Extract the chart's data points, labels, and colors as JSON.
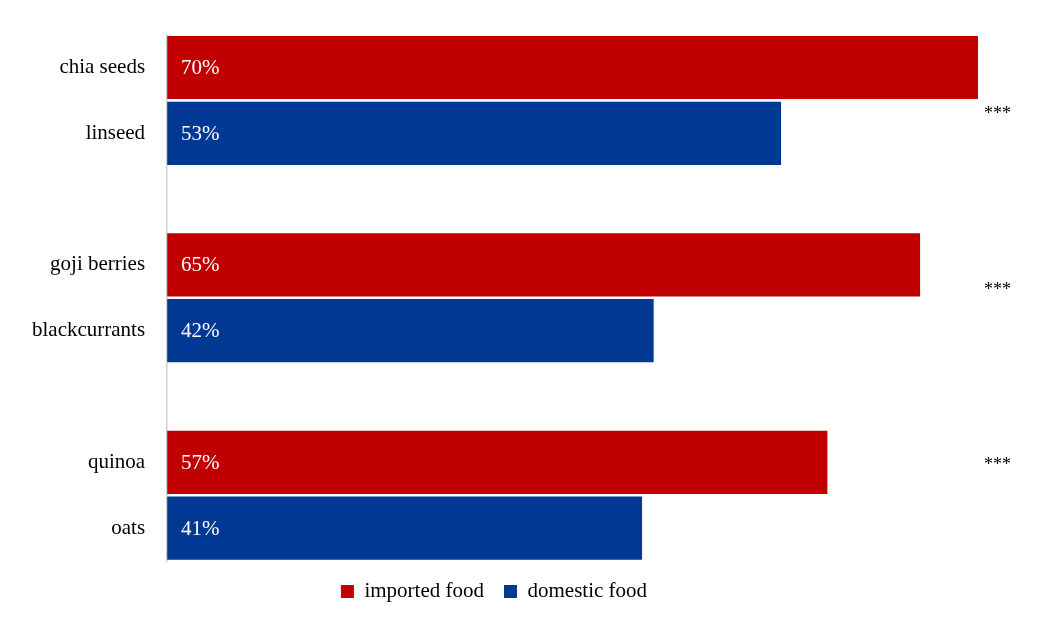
{
  "chart_data": {
    "type": "bar",
    "orientation": "horizontal",
    "categories": [
      "chia seeds",
      "linseed",
      null,
      "goji berries",
      "blackcurrants",
      null,
      "quinoa",
      "oats"
    ],
    "series": [
      {
        "name": "imported food",
        "color": "#c00000",
        "values": [
          70,
          null,
          null,
          65,
          null,
          null,
          57,
          null
        ],
        "value_labels": [
          "70%",
          null,
          null,
          "65%",
          null,
          null,
          "57%",
          null
        ]
      },
      {
        "name": "domestic food",
        "color": "#003893",
        "values": [
          null,
          53,
          null,
          null,
          42,
          null,
          null,
          41
        ],
        "value_labels": [
          null,
          "53%",
          null,
          null,
          "42%",
          null,
          null,
          "41%"
        ]
      }
    ],
    "tick_labels": "y",
    "grid": false,
    "legend": "bottom",
    "annotations": [
      "***",
      "***",
      "***"
    ]
  }
}
